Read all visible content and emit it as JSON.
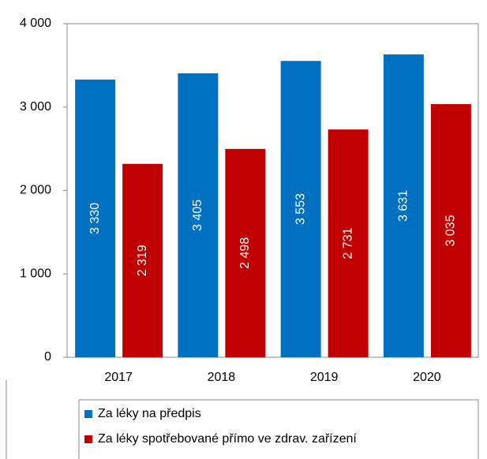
{
  "chart_data": {
    "type": "bar",
    "categories": [
      "2017",
      "2018",
      "2019",
      "2020"
    ],
    "series": [
      {
        "name": "Za léky na předpis",
        "color": "#0070c0",
        "values": [
          3330,
          3405,
          3553,
          3631
        ],
        "value_labels": [
          "3 330",
          "3 405",
          "3 553",
          "3 631"
        ]
      },
      {
        "name": "Za léky spotřebované přímo ve zdrav. zařízení",
        "color": "#c00000",
        "values": [
          2319,
          2498,
          2731,
          3035
        ],
        "value_labels": [
          "2 319",
          "2 498",
          "2 731",
          "3 035"
        ]
      }
    ],
    "ylim": [
      0,
      4000
    ],
    "yticks": [
      {
        "value": 0,
        "label": "0"
      },
      {
        "value": 1000,
        "label": "1 000"
      },
      {
        "value": 2000,
        "label": "2 000"
      },
      {
        "value": 3000,
        "label": "3 000"
      },
      {
        "value": 4000,
        "label": "4 000"
      }
    ],
    "grid": false
  }
}
